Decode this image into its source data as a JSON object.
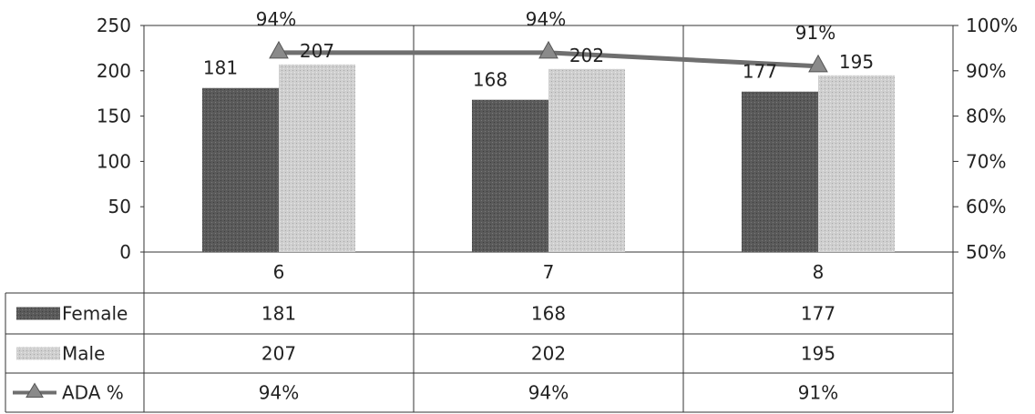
{
  "chart_data": {
    "type": "bar",
    "categories": [
      "6",
      "7",
      "8"
    ],
    "series": [
      {
        "name": "Female",
        "type": "bar",
        "values": [
          181,
          168,
          177
        ],
        "labels": [
          "181",
          "168",
          "177"
        ],
        "color": "#585858"
      },
      {
        "name": "Male",
        "type": "bar",
        "values": [
          207,
          202,
          195
        ],
        "labels": [
          "207",
          "202",
          "195"
        ],
        "color": "#c8c8c8"
      },
      {
        "name": "ADA %",
        "type": "line",
        "axis": "secondary",
        "values": [
          0.94,
          0.94,
          0.91
        ],
        "labels": [
          "94%",
          "94%",
          "91%"
        ],
        "color": "#707070"
      }
    ],
    "y_ticks": [
      "0",
      "50",
      "100",
      "150",
      "200",
      "250"
    ],
    "ylim": [
      0,
      250
    ],
    "y2_ticks": [
      "50%",
      "60%",
      "70%",
      "80%",
      "90%",
      "100%"
    ],
    "y2lim": [
      0.5,
      1.0
    ],
    "data_table": {
      "rows": [
        {
          "name": "Female",
          "cells": [
            "181",
            "168",
            "177"
          ]
        },
        {
          "name": "Male",
          "cells": [
            "207",
            "202",
            "195"
          ]
        },
        {
          "name": "ADA %",
          "cells": [
            "94%",
            "94%",
            "91%"
          ]
        }
      ]
    },
    "legend": "data-table",
    "grid": false
  }
}
